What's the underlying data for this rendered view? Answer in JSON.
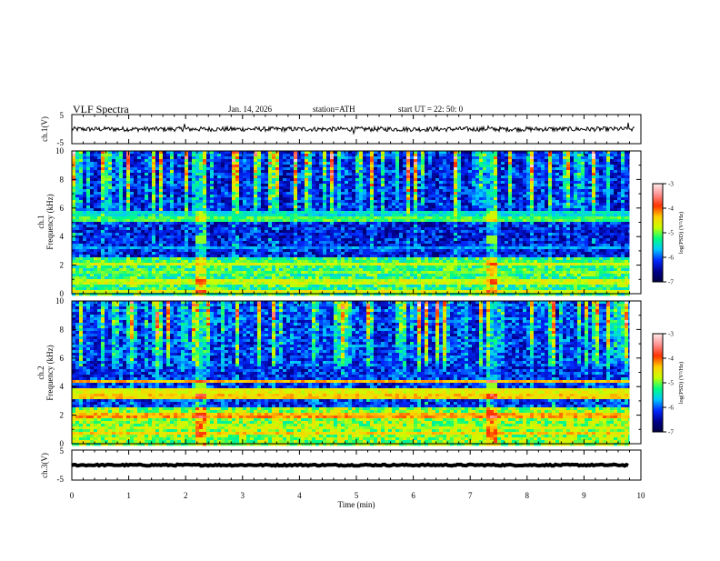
{
  "header": {
    "title": "VLF  Spectra",
    "date": "Jan. 14, 2026",
    "station": "station=ATH",
    "start_ut": "start  UT  =   22: 50: 0"
  },
  "colors": {
    "background": "#ffffff",
    "axis": "#000000",
    "trace": "#000000",
    "colormap": [
      "#000040",
      "#00008c",
      "#0028ff",
      "#00c8ff",
      "#00ff80",
      "#c8ff00",
      "#ffd000",
      "#ff3000",
      "#ff9090",
      "#ffe8e8"
    ]
  },
  "chart_data": [
    {
      "type": "line",
      "name": "ch1-waveform",
      "ylabel": "ch.1(V)",
      "ylim": [
        -5,
        5
      ],
      "yticks": [
        "5",
        "-5"
      ],
      "xlim": [
        0,
        10
      ],
      "baseline": 0,
      "noise_amplitude": 0.8,
      "spike_times": [
        0.62,
        1.97,
        2.22,
        4.95,
        7.31,
        9.78
      ]
    },
    {
      "type": "heatmap",
      "name": "ch1-spectrogram",
      "ylabel_channel": "ch.1",
      "ylabel": "Frequency  (kHz)",
      "yticks": [
        "0",
        "2",
        "4",
        "6",
        "8",
        "10"
      ],
      "ylim": [
        0,
        10
      ],
      "xlim": [
        0,
        10
      ],
      "data_end_min": 9.8,
      "colorbar": {
        "label": "log(PSD) (V²/Hz)",
        "ticks": [
          "-3",
          "-4",
          "-5",
          "-6",
          "-7"
        ],
        "range": [
          -7,
          -3
        ]
      },
      "bright_events_min": [
        2.25,
        7.35
      ],
      "bright_event_freq_khz": 3.9,
      "background_log_psd": -6.3,
      "low_band_log_psd": -5.2,
      "bands": [
        {
          "f_khz": 0.2,
          "log_psd": -4.6
        },
        {
          "f_khz": 0.9,
          "log_psd": -4.7
        },
        {
          "f_khz": 1.6,
          "log_psd": -5.0
        },
        {
          "f_khz": 2.1,
          "log_psd": -4.7
        },
        {
          "f_khz": 2.4,
          "log_psd": -5.3
        },
        {
          "f_khz": 3.3,
          "log_psd": -5.8
        },
        {
          "f_khz": 5.3,
          "log_psd": -5.1
        },
        {
          "f_khz": 5.7,
          "log_psd": -5.5
        }
      ]
    },
    {
      "type": "heatmap",
      "name": "ch2-spectrogram",
      "ylabel_channel": "ch.2",
      "ylabel": "Frequency  (kHz)",
      "yticks": [
        "0",
        "2",
        "4",
        "6",
        "8",
        "10"
      ],
      "ylim": [
        0,
        10
      ],
      "xlim": [
        0,
        10
      ],
      "data_end_min": 9.8,
      "colorbar": {
        "label": "log(PSD) (V²/Hz)",
        "ticks": [
          "-3",
          "-4",
          "-5",
          "-6",
          "-7"
        ],
        "range": [
          -7,
          -3
        ]
      },
      "bright_events_min": [
        2.25,
        7.35
      ],
      "bright_event_freq_khz": 4.0,
      "background_log_psd": -6.2,
      "low_band_log_psd": -4.9,
      "bands": [
        {
          "f_khz": 0.8,
          "log_psd": -4.4
        },
        {
          "f_khz": 2.0,
          "log_psd": -4.2
        },
        {
          "f_khz": 2.2,
          "log_psd": -4.3
        },
        {
          "f_khz": 3.4,
          "log_psd": -4.4
        },
        {
          "f_khz": 3.8,
          "log_psd": -4.6
        },
        {
          "f_khz": 4.5,
          "log_psd": -4.3
        },
        {
          "f_khz": 1.2,
          "log_psd": -4.8
        }
      ]
    },
    {
      "type": "line",
      "name": "ch3-waveform",
      "ylabel": "ch.3(V)",
      "ylim": [
        -5,
        5
      ],
      "yticks": [
        "5",
        "-5"
      ],
      "xlim": [
        0,
        10
      ],
      "baseline": 0,
      "noise_amplitude": 0.25,
      "trace_width": 4
    }
  ],
  "x_axis": {
    "label": "Time  (min)",
    "ticks": [
      "0",
      "1",
      "2",
      "3",
      "4",
      "5",
      "6",
      "7",
      "8",
      "9",
      "10"
    ],
    "range": [
      0,
      10
    ]
  }
}
